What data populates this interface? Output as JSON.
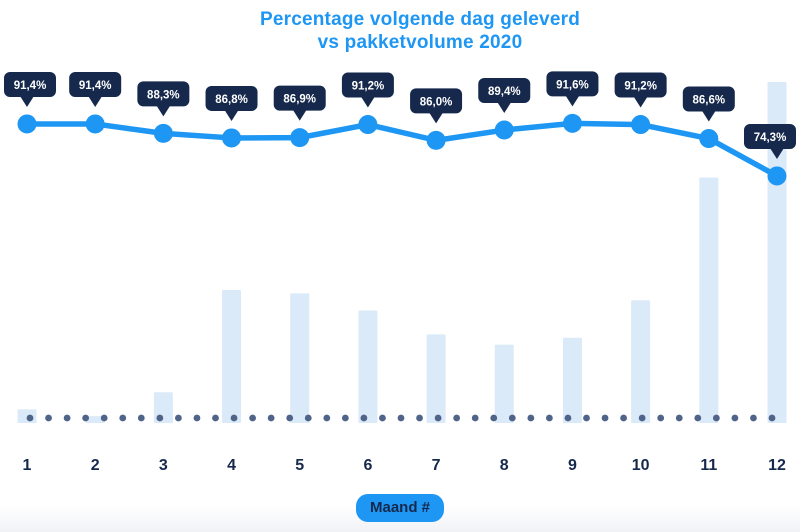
{
  "page": {
    "background": "#ffffff"
  },
  "chart_data": {
    "type": "combo: line + bar",
    "title": "Percentage volgende dag geleverd vs pakketvolume 2020",
    "title_line1": "Percentage volgende dag geleverd",
    "title_line2": "vs pakketvolume 2020",
    "xlabel_badge": "Maand #",
    "categories": [
      "1",
      "2",
      "3",
      "4",
      "5",
      "6",
      "7",
      "8",
      "9",
      "10",
      "11",
      "12"
    ],
    "series": [
      {
        "name": "Percentage volgende dag geleverd",
        "type": "line",
        "unit": "%",
        "values": [
          91.4,
          91.4,
          88.3,
          86.8,
          86.9,
          91.2,
          86.0,
          89.4,
          91.6,
          91.2,
          86.6,
          74.3
        ],
        "point_labels": [
          "91,4%",
          "91,4%",
          "88,3%",
          "86,8%",
          "86,9%",
          "91,2%",
          "86,0%",
          "89,4%",
          "91,6%",
          "91,2%",
          "86,6%",
          "74,3%"
        ]
      },
      {
        "name": "pakketvolume 2020",
        "type": "bar",
        "unit": "relative volume index (estimated from bar heights, max month = 100)",
        "values": [
          4,
          2,
          9,
          39,
          38,
          33,
          26,
          23,
          25,
          36,
          72,
          100
        ]
      }
    ],
    "axes": {
      "x_ticks": [
        "1",
        "2",
        "3",
        "4",
        "5",
        "6",
        "7",
        "8",
        "9",
        "10",
        "11",
        "12"
      ],
      "y_axis_visible": false,
      "grid": false,
      "baseline_style": "dotted row of dots above x axis"
    },
    "legend": {
      "visible": false
    },
    "colors": {
      "accent_blue": "#1E96F3",
      "navy": "#16294C",
      "bar_fill": "#DBEAF8",
      "baseline_dot": "#50648A",
      "tooltip_text": "#FFFFFF"
    }
  }
}
